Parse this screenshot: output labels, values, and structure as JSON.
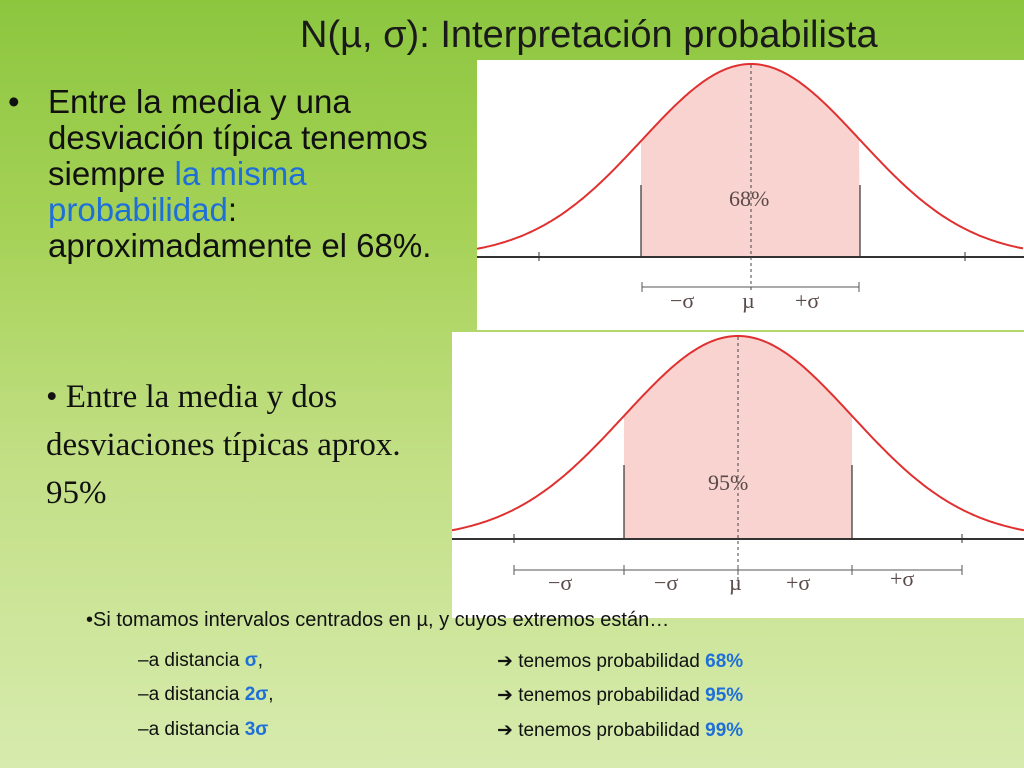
{
  "title": "N(µ, σ): Interpretación probabilista",
  "bullet1": {
    "marker": "•",
    "text_before": "Entre la media y una desviación típica tenemos siempre ",
    "highlight": "la misma probabilidad",
    "text_after": ": aproximadamente el 68%."
  },
  "bullet2": "• Entre la media y dos desviaciones típicas aprox. 95%",
  "figure1": {
    "area_label": "68%",
    "axis_labels": [
      "−σ",
      "µ",
      "+σ"
    ]
  },
  "figure2": {
    "area_label": "95%",
    "axis_labels": [
      "−σ",
      "−σ",
      "µ",
      "+σ",
      "+σ"
    ]
  },
  "intervals": {
    "intro": "•Si tomamos intervalos centrados en µ, y cuyos extremos están…",
    "rows": [
      {
        "left_text": "–a  distancia ",
        "left_hl": "σ",
        "left_suffix": ",",
        "arrow": "➔",
        "right_text": " tenemos probabilidad ",
        "right_hl": "68%"
      },
      {
        "left_text": "–a distancia ",
        "left_hl": "2σ",
        "left_suffix": ",",
        "arrow": "➔",
        "right_text": " tenemos probabilidad ",
        "right_hl": "95%"
      },
      {
        "left_text": "–a distancia ",
        "left_hl": "3σ",
        "left_suffix": "",
        "arrow": "➔",
        "right_text": " tenemos probabilidad ",
        "right_hl": "99%"
      }
    ]
  },
  "colors": {
    "curve": "#e03030",
    "fill": "#f9d3cf",
    "highlight": "#1f6fd8"
  }
}
